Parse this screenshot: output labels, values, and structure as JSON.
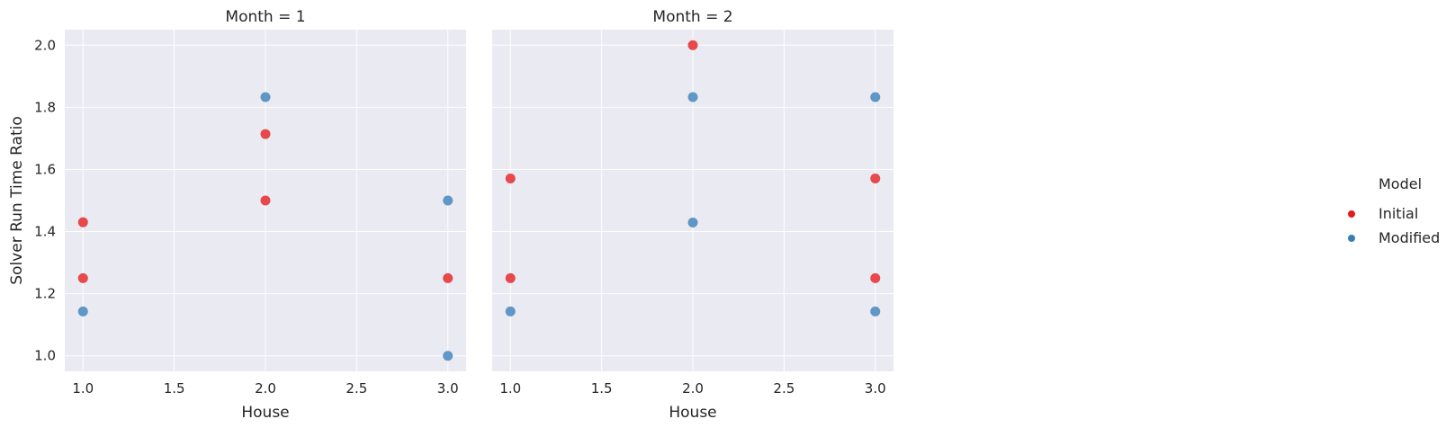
{
  "chart_data": [
    {
      "type": "scatter",
      "title": "Month = 1",
      "xlabel": "House",
      "ylabel": "Solver Run Time Ratio",
      "xlim": [
        0.9,
        3.1
      ],
      "ylim": [
        0.95,
        2.05
      ],
      "xticks": [
        "1.0",
        "1.5",
        "2.0",
        "2.5",
        "3.0"
      ],
      "yticks": [
        "1.0",
        "1.2",
        "1.4",
        "1.6",
        "1.8",
        "2.0"
      ],
      "grid": true,
      "series": [
        {
          "name": "Initial",
          "points": [
            [
              1.0,
              1.43
            ],
            [
              1.0,
              1.25
            ],
            [
              2.0,
              1.714
            ],
            [
              2.0,
              1.5
            ],
            [
              3.0,
              1.25
            ]
          ]
        },
        {
          "name": "Modified",
          "points": [
            [
              1.0,
              1.143
            ],
            [
              2.0,
              1.833
            ],
            [
              3.0,
              1.5
            ],
            [
              3.0,
              1.0
            ]
          ]
        }
      ]
    },
    {
      "type": "scatter",
      "title": "Month = 2",
      "xlabel": "House",
      "ylabel": "",
      "xlim": [
        0.9,
        3.1
      ],
      "ylim": [
        0.95,
        2.05
      ],
      "xticks": [
        "1.0",
        "1.5",
        "2.0",
        "2.5",
        "3.0"
      ],
      "yticks": [
        "1.0",
        "1.2",
        "1.4",
        "1.6",
        "1.8",
        "2.0"
      ],
      "grid": true,
      "series": [
        {
          "name": "Initial",
          "points": [
            [
              1.0,
              1.571
            ],
            [
              1.0,
              1.25
            ],
            [
              2.0,
              2.0
            ],
            [
              3.0,
              1.571
            ],
            [
              3.0,
              1.25
            ]
          ]
        },
        {
          "name": "Modified",
          "points": [
            [
              1.0,
              1.143
            ],
            [
              2.0,
              1.833
            ],
            [
              2.0,
              1.429
            ],
            [
              3.0,
              1.833
            ],
            [
              3.0,
              1.143
            ]
          ]
        }
      ]
    }
  ],
  "legend": {
    "title": "Model",
    "placement": "right",
    "items": [
      {
        "label": "Initial",
        "color": "#e41a1c"
      },
      {
        "label": "Modified",
        "color": "#377eb8"
      }
    ]
  },
  "colors": {
    "panel_bg": "#eaeaf2",
    "grid": "#ffffff",
    "Initial": "#e41a1c",
    "Modified": "#377eb8"
  }
}
